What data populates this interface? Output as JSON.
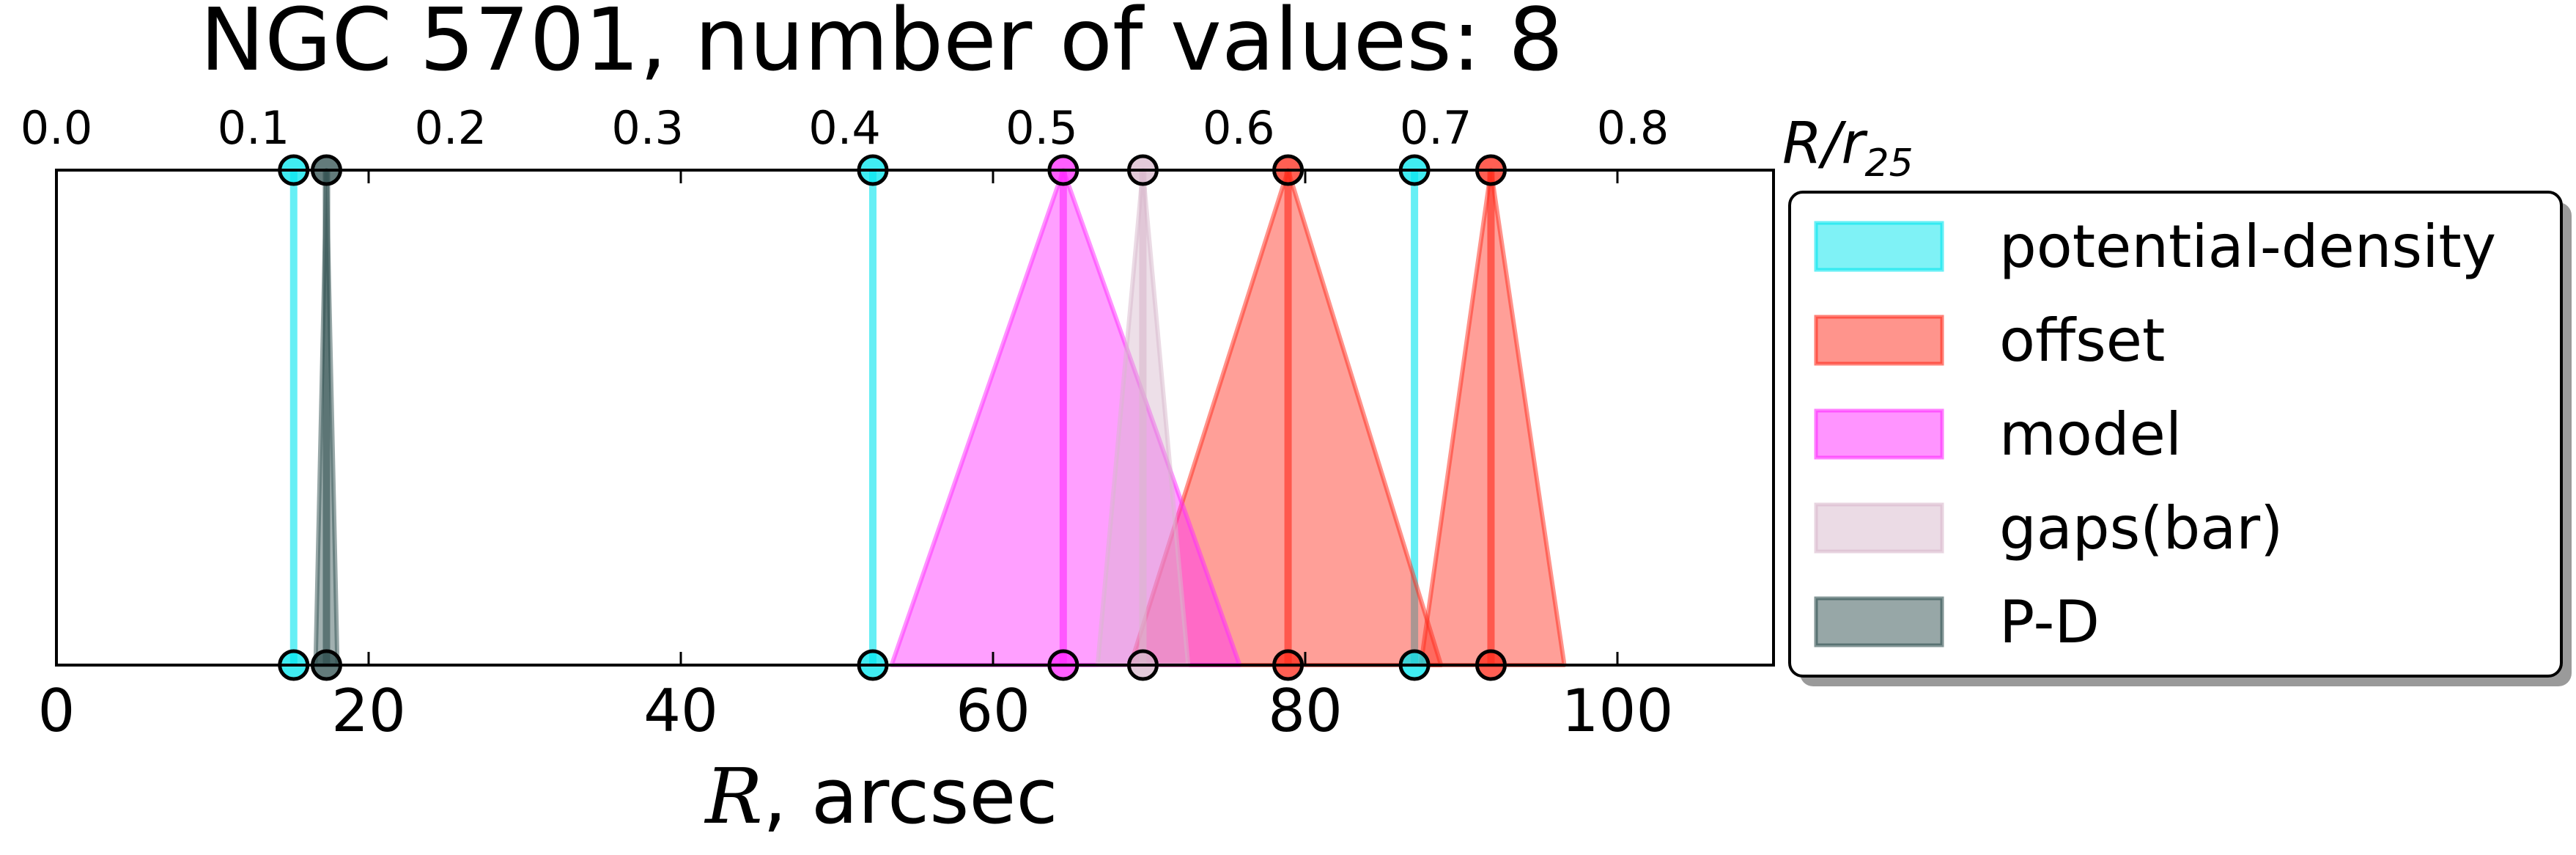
{
  "chart_data": {
    "type": "triangle-range",
    "title": "NGC 5701, number of values: 8",
    "xlabel_math": "R",
    "xlabel_rest": ", arcsec",
    "x2label_main": "R/r",
    "x2label_sub": "25",
    "xlim": [
      0,
      110
    ],
    "xticks": [
      0,
      20,
      40,
      60,
      80,
      100
    ],
    "x2lim": [
      0.0,
      0.8714
    ],
    "x2ticks": [
      0.0,
      0.1,
      0.2,
      0.3,
      0.4,
      0.5,
      0.6,
      0.7,
      0.8
    ],
    "x2ticklabels": [
      "0.0",
      "0.1",
      "0.2",
      "0.3",
      "0.4",
      "0.5",
      "0.6",
      "0.7",
      "0.8"
    ],
    "legend_position": "outside-right",
    "series": [
      {
        "name": "potential-density",
        "color": "#00e5ee",
        "items": [
          {
            "r": 15.2,
            "lo": 15.2,
            "hi": 15.2
          },
          {
            "r": 52.3,
            "lo": 52.3,
            "hi": 52.3
          },
          {
            "r": 87.0,
            "lo": 87.0,
            "hi": 87.0
          }
        ]
      },
      {
        "name": "offset",
        "color": "#ff2a1a",
        "items": [
          {
            "r": 78.9,
            "lo": 68.8,
            "hi": 88.7
          },
          {
            "r": 91.9,
            "lo": 87.4,
            "hi": 96.6
          }
        ]
      },
      {
        "name": "model",
        "color": "#ff2aff",
        "items": [
          {
            "r": 64.5,
            "lo": 53.5,
            "hi": 75.8
          }
        ]
      },
      {
        "name": "gaps(bar)",
        "color": "#d8b8cc",
        "items": [
          {
            "r": 69.6,
            "lo": 66.7,
            "hi": 72.5
          }
        ]
      },
      {
        "name": "P-D",
        "color": "#2f4f4f",
        "items": [
          {
            "r": 17.3,
            "lo": 16.6,
            "hi": 18.0
          }
        ]
      }
    ]
  }
}
